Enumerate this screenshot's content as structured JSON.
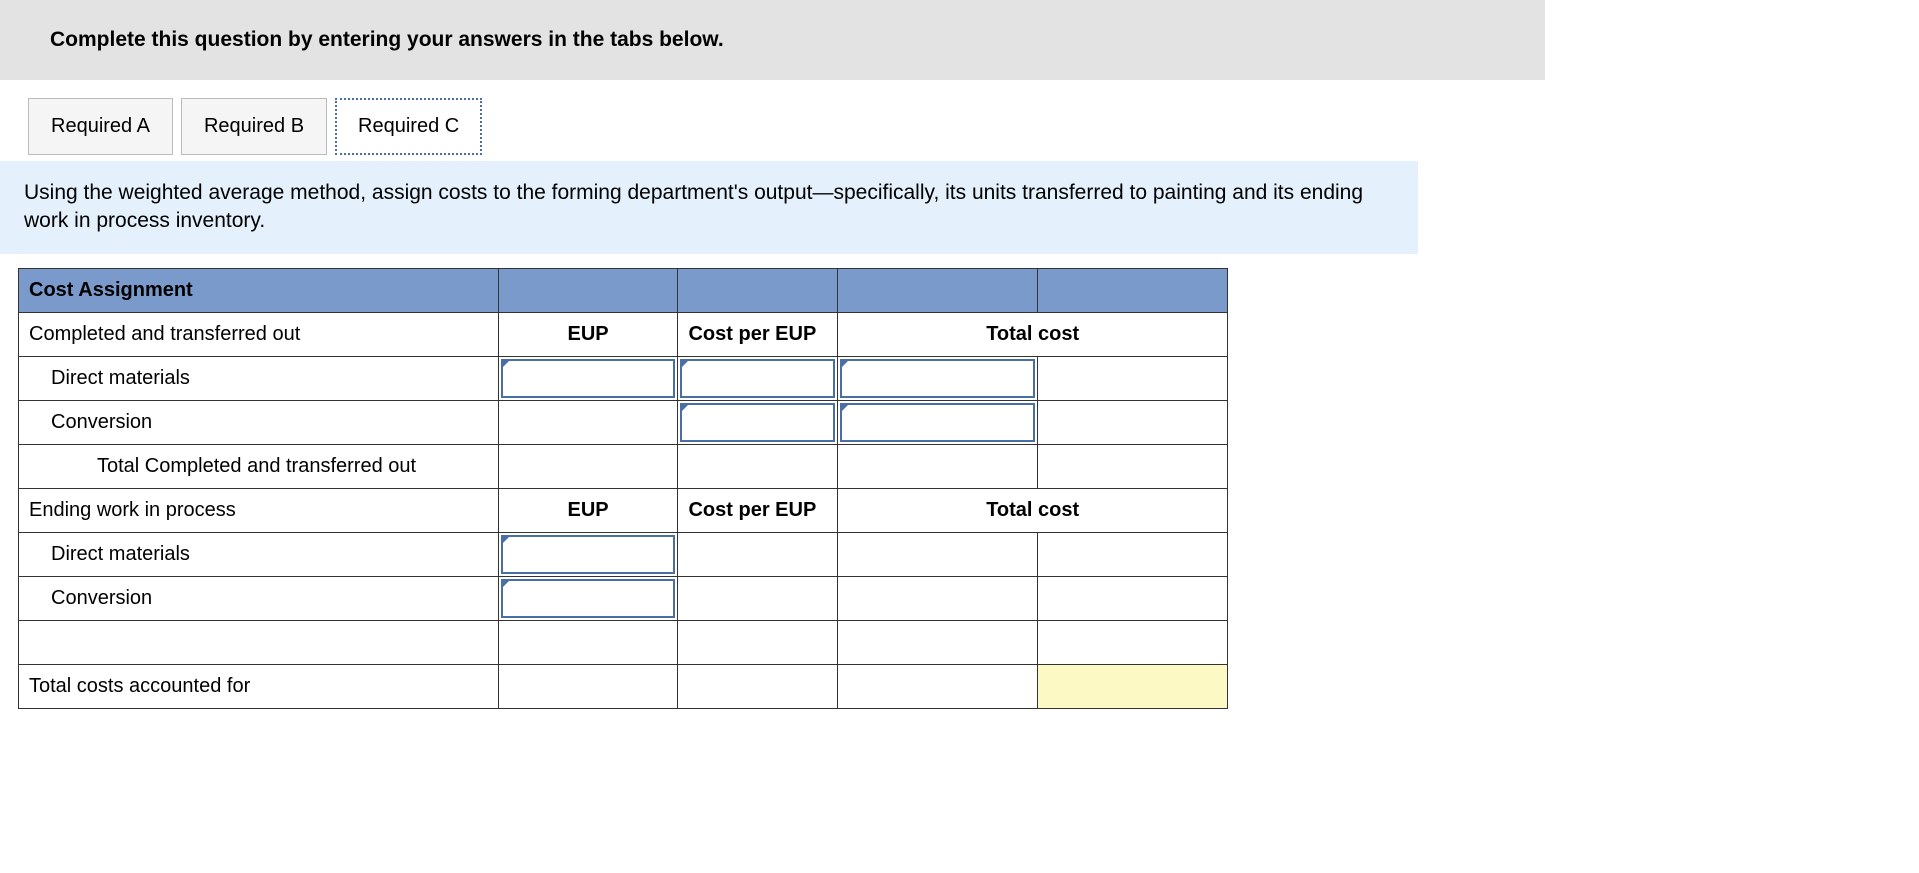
{
  "instruction": "Complete this question by entering your answers in the tabs below.",
  "tabs": [
    {
      "label": "Required A",
      "active": false
    },
    {
      "label": "Required B",
      "active": false
    },
    {
      "label": "Required C",
      "active": true
    }
  ],
  "description": "Using the weighted average method, assign costs to the forming department's output—specifically, its units transferred to painting and its ending work in process inventory.",
  "table": {
    "section_header": "Cost Assignment",
    "col_headers": {
      "eup": "EUP",
      "cost_per_eup": "Cost per EUP",
      "total_cost": "Total cost"
    },
    "rows": {
      "completed_label": "Completed and transferred out",
      "direct_materials": "Direct materials",
      "conversion": "Conversion",
      "total_completed": "Total Completed and transferred out",
      "ending_wip": "Ending work in process",
      "total_costs": "Total costs accounted for"
    },
    "colors": {
      "header_bg": "#7a9acb",
      "input_border": "#4a6fa5",
      "highlight": "#fdf9c4",
      "instruction_bg": "#e3e3e3",
      "description_bg": "#e4f0fb"
    },
    "inputs": {
      "completed_dm_eup": "",
      "completed_dm_cpe": "",
      "completed_dm_tot": "",
      "completed_conv_cpe": "",
      "completed_conv_tot": "",
      "ending_dm_eup": "",
      "ending_conv_eup": ""
    }
  }
}
